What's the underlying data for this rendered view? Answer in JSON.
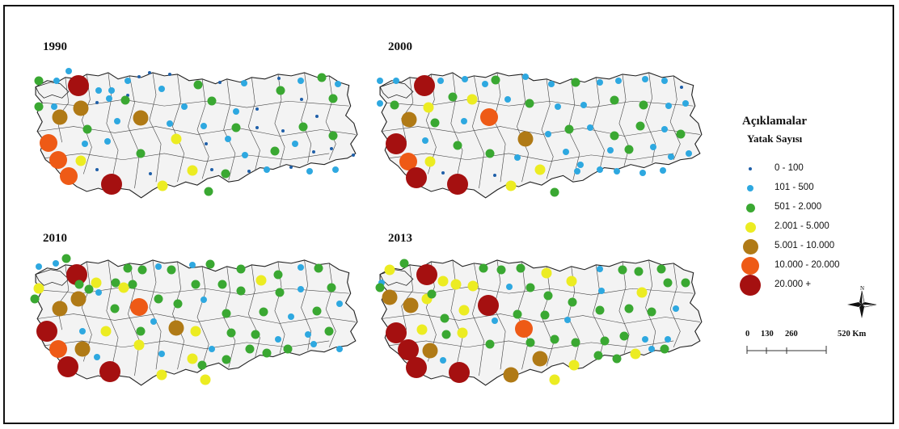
{
  "panels": [
    {
      "year": "1990",
      "dots": [
        [
          48,
          100,
          2
        ],
        [
          70,
          100,
          1
        ],
        [
          85,
          88,
          1
        ],
        [
          97,
          106,
          6
        ],
        [
          122,
          112,
          1
        ],
        [
          138,
          112,
          1
        ],
        [
          158,
          100,
          1
        ],
        [
          172,
          95,
          0
        ],
        [
          185,
          90,
          0
        ],
        [
          210,
          92,
          0
        ],
        [
          245,
          105,
          2
        ],
        [
          272,
          102,
          0
        ],
        [
          302,
          103,
          1
        ],
        [
          345,
          97,
          0
        ],
        [
          372,
          100,
          1
        ],
        [
          398,
          96,
          2
        ],
        [
          418,
          104,
          1
        ],
        [
          48,
          132,
          2
        ],
        [
          100,
          134,
          4
        ],
        [
          67,
          132,
          1
        ],
        [
          120,
          127,
          0
        ],
        [
          135,
          122,
          1
        ],
        [
          158,
          118,
          0
        ],
        [
          155,
          124,
          2
        ],
        [
          200,
          110,
          1
        ],
        [
          228,
          132,
          1
        ],
        [
          262,
          125,
          2
        ],
        [
          292,
          138,
          1
        ],
        [
          318,
          135,
          0
        ],
        [
          347,
          112,
          2
        ],
        [
          373,
          123,
          0
        ],
        [
          412,
          122,
          2
        ],
        [
          74,
          145,
          4
        ],
        [
          108,
          160,
          2
        ],
        [
          145,
          150,
          1
        ],
        [
          174,
          146,
          4
        ],
        [
          210,
          153,
          1
        ],
        [
          252,
          156,
          1
        ],
        [
          292,
          158,
          2
        ],
        [
          318,
          158,
          0
        ],
        [
          350,
          162,
          0
        ],
        [
          375,
          157,
          2
        ],
        [
          412,
          168,
          2
        ],
        [
          392,
          144,
          0
        ],
        [
          60,
          177,
          5
        ],
        [
          105,
          178,
          1
        ],
        [
          133,
          175,
          1
        ],
        [
          174,
          190,
          2
        ],
        [
          218,
          172,
          3
        ],
        [
          255,
          178,
          0
        ],
        [
          282,
          172,
          1
        ],
        [
          303,
          192,
          1
        ],
        [
          340,
          187,
          2
        ],
        [
          365,
          178,
          1
        ],
        [
          388,
          188,
          0
        ],
        [
          410,
          184,
          0
        ],
        [
          437,
          192,
          0
        ],
        [
          72,
          198,
          5
        ],
        [
          100,
          199,
          3
        ],
        [
          85,
          218,
          5
        ],
        [
          120,
          210,
          0
        ],
        [
          138,
          228,
          6
        ],
        [
          186,
          215,
          0
        ],
        [
          201,
          230,
          3
        ],
        [
          238,
          211,
          3
        ],
        [
          262,
          210,
          0
        ],
        [
          279,
          215,
          2
        ],
        [
          258,
          237,
          2
        ],
        [
          308,
          212,
          0
        ],
        [
          330,
          210,
          1
        ],
        [
          360,
          207,
          0
        ],
        [
          383,
          212,
          1
        ],
        [
          415,
          210,
          1
        ]
      ]
    },
    {
      "year": "2000",
      "dots": [
        [
          470,
          100,
          1
        ],
        [
          490,
          100,
          1
        ],
        [
          525,
          106,
          6
        ],
        [
          545,
          100,
          1
        ],
        [
          575,
          98,
          1
        ],
        [
          600,
          104,
          1
        ],
        [
          613,
          99,
          2
        ],
        [
          650,
          95,
          1
        ],
        [
          682,
          104,
          1
        ],
        [
          712,
          102,
          2
        ],
        [
          742,
          102,
          1
        ],
        [
          765,
          100,
          1
        ],
        [
          798,
          98,
          1
        ],
        [
          822,
          100,
          1
        ],
        [
          843,
          108,
          0
        ],
        [
          470,
          128,
          1
        ],
        [
          488,
          130,
          2
        ],
        [
          530,
          133,
          3
        ],
        [
          560,
          120,
          2
        ],
        [
          584,
          123,
          3
        ],
        [
          605,
          145,
          5
        ],
        [
          628,
          123,
          1
        ],
        [
          655,
          128,
          2
        ],
        [
          690,
          132,
          1
        ],
        [
          722,
          130,
          1
        ],
        [
          760,
          124,
          2
        ],
        [
          796,
          130,
          2
        ],
        [
          827,
          131,
          1
        ],
        [
          848,
          128,
          1
        ],
        [
          506,
          148,
          4
        ],
        [
          538,
          152,
          2
        ],
        [
          574,
          150,
          1
        ],
        [
          650,
          172,
          4
        ],
        [
          678,
          166,
          1
        ],
        [
          704,
          160,
          2
        ],
        [
          730,
          158,
          1
        ],
        [
          760,
          168,
          2
        ],
        [
          792,
          156,
          2
        ],
        [
          822,
          160,
          1
        ],
        [
          842,
          166,
          2
        ],
        [
          490,
          178,
          6
        ],
        [
          526,
          174,
          1
        ],
        [
          566,
          180,
          2
        ],
        [
          606,
          190,
          2
        ],
        [
          640,
          195,
          1
        ],
        [
          668,
          210,
          3
        ],
        [
          700,
          188,
          1
        ],
        [
          718,
          204,
          1
        ],
        [
          755,
          186,
          1
        ],
        [
          778,
          185,
          2
        ],
        [
          808,
          182,
          1
        ],
        [
          830,
          194,
          1
        ],
        [
          852,
          190,
          1
        ],
        [
          505,
          200,
          5
        ],
        [
          532,
          200,
          3
        ],
        [
          515,
          220,
          6
        ],
        [
          548,
          214,
          0
        ],
        [
          566,
          228,
          6
        ],
        [
          612,
          217,
          0
        ],
        [
          632,
          230,
          3
        ],
        [
          686,
          238,
          2
        ],
        [
          714,
          212,
          1
        ],
        [
          742,
          210,
          1
        ],
        [
          763,
          212,
          1
        ],
        [
          795,
          214,
          1
        ],
        [
          820,
          211,
          1
        ]
      ]
    },
    {
      "year": "2010",
      "dots": [
        [
          48,
          330,
          1
        ],
        [
          69,
          326,
          1
        ],
        [
          82,
          320,
          2
        ],
        [
          95,
          340,
          6
        ],
        [
          119,
          350,
          3
        ],
        [
          143,
          350,
          2
        ],
        [
          158,
          332,
          2
        ],
        [
          176,
          334,
          2
        ],
        [
          196,
          330,
          1
        ],
        [
          212,
          334,
          2
        ],
        [
          238,
          328,
          1
        ],
        [
          260,
          327,
          2
        ],
        [
          298,
          333,
          2
        ],
        [
          323,
          347,
          3
        ],
        [
          344,
          340,
          2
        ],
        [
          372,
          331,
          1
        ],
        [
          394,
          332,
          2
        ],
        [
          43,
          370,
          2
        ],
        [
          74,
          382,
          4
        ],
        [
          97,
          370,
          4
        ],
        [
          98,
          352,
          2
        ],
        [
          110,
          358,
          2
        ],
        [
          122,
          362,
          1
        ],
        [
          153,
          356,
          3
        ],
        [
          164,
          352,
          2
        ],
        [
          196,
          370,
          2
        ],
        [
          242,
          352,
          2
        ],
        [
          275,
          352,
          2
        ],
        [
          298,
          360,
          2
        ],
        [
          346,
          362,
          2
        ],
        [
          372,
          358,
          1
        ],
        [
          410,
          356,
          2
        ],
        [
          48,
          357,
          3
        ],
        [
          142,
          382,
          2
        ],
        [
          172,
          380,
          5
        ],
        [
          220,
          376,
          2
        ],
        [
          252,
          371,
          1
        ],
        [
          280,
          388,
          2
        ],
        [
          326,
          386,
          2
        ],
        [
          360,
          392,
          1
        ],
        [
          392,
          385,
          2
        ],
        [
          420,
          376,
          1
        ],
        [
          58,
          410,
          6
        ],
        [
          102,
          410,
          1
        ],
        [
          131,
          410,
          3
        ],
        [
          174,
          410,
          2
        ],
        [
          190,
          398,
          1
        ],
        [
          218,
          406,
          4
        ],
        [
          242,
          410,
          3
        ],
        [
          286,
          412,
          2
        ],
        [
          316,
          414,
          2
        ],
        [
          344,
          420,
          1
        ],
        [
          381,
          414,
          1
        ],
        [
          407,
          410,
          2
        ],
        [
          72,
          432,
          5
        ],
        [
          102,
          432,
          4
        ],
        [
          84,
          454,
          6
        ],
        [
          120,
          442,
          1
        ],
        [
          136,
          460,
          6
        ],
        [
          172,
          427,
          3
        ],
        [
          200,
          438,
          1
        ],
        [
          238,
          444,
          3
        ],
        [
          262,
          432,
          1
        ],
        [
          280,
          445,
          2
        ],
        [
          250,
          452,
          2
        ],
        [
          309,
          432,
          2
        ],
        [
          330,
          437,
          2
        ],
        [
          356,
          432,
          2
        ],
        [
          388,
          426,
          1
        ],
        [
          420,
          432,
          1
        ],
        [
          200,
          464,
          3
        ],
        [
          254,
          470,
          3
        ]
      ]
    },
    {
      "year": "2013",
      "dots": [
        [
          482,
          334,
          3
        ],
        [
          500,
          326,
          2
        ],
        [
          528,
          340,
          6
        ],
        [
          548,
          348,
          3
        ],
        [
          564,
          352,
          3
        ],
        [
          585,
          354,
          3
        ],
        [
          598,
          332,
          2
        ],
        [
          620,
          334,
          2
        ],
        [
          644,
          332,
          2
        ],
        [
          676,
          338,
          3
        ],
        [
          707,
          348,
          3
        ],
        [
          742,
          333,
          1
        ],
        [
          770,
          334,
          2
        ],
        [
          790,
          336,
          2
        ],
        [
          818,
          333,
          2
        ],
        [
          472,
          350,
          1
        ],
        [
          482,
          368,
          4
        ],
        [
          508,
          378,
          4
        ],
        [
          528,
          370,
          3
        ],
        [
          574,
          384,
          3
        ],
        [
          604,
          378,
          6
        ],
        [
          630,
          355,
          1
        ],
        [
          656,
          356,
          2
        ],
        [
          678,
          366,
          2
        ],
        [
          708,
          374,
          2
        ],
        [
          744,
          360,
          1
        ],
        [
          794,
          362,
          3
        ],
        [
          826,
          350,
          2
        ],
        [
          848,
          350,
          2
        ],
        [
          470,
          356,
          2
        ],
        [
          534,
          364,
          2
        ],
        [
          550,
          394,
          2
        ],
        [
          572,
          412,
          3
        ],
        [
          612,
          397,
          1
        ],
        [
          640,
          389,
          2
        ],
        [
          674,
          390,
          2
        ],
        [
          702,
          396,
          1
        ],
        [
          742,
          384,
          2
        ],
        [
          778,
          382,
          2
        ],
        [
          806,
          386,
          2
        ],
        [
          836,
          382,
          1
        ],
        [
          490,
          412,
          6
        ],
        [
          522,
          408,
          3
        ],
        [
          552,
          414,
          2
        ],
        [
          606,
          426,
          2
        ],
        [
          648,
          407,
          5
        ],
        [
          656,
          424,
          2
        ],
        [
          686,
          420,
          2
        ],
        [
          712,
          424,
          2
        ],
        [
          748,
          422,
          2
        ],
        [
          772,
          416,
          2
        ],
        [
          798,
          420,
          1
        ],
        [
          826,
          420,
          1
        ],
        [
          505,
          433,
          6
        ],
        [
          532,
          434,
          4
        ],
        [
          515,
          455,
          6
        ],
        [
          548,
          446,
          1
        ],
        [
          568,
          461,
          6
        ],
        [
          632,
          464,
          4
        ],
        [
          668,
          444,
          4
        ],
        [
          686,
          470,
          3
        ],
        [
          710,
          452,
          3
        ],
        [
          740,
          440,
          2
        ],
        [
          763,
          444,
          2
        ],
        [
          786,
          438,
          3
        ],
        [
          806,
          432,
          1
        ],
        [
          822,
          432,
          2
        ]
      ]
    }
  ],
  "legend": {
    "title": "Açıklamalar",
    "subtitle": "Yatak Sayısı",
    "items": [
      {
        "label": "0 - 100",
        "color": "#1f5fa8"
      },
      {
        "label": "101 - 500",
        "color": "#2ea8e0"
      },
      {
        "label": "501 - 2.000",
        "color": "#3aa832"
      },
      {
        "label": "2.001 - 5.000",
        "color": "#ecec22"
      },
      {
        "label": "5.001 - 10.000",
        "color": "#b07a16"
      },
      {
        "label": "10.000 - 20.000",
        "color": "#ee5a16"
      },
      {
        "label": "20.000 +",
        "color": "#a51010"
      }
    ]
  },
  "north_label": "N",
  "scale": {
    "ticks": [
      "0",
      "130",
      "260",
      "520 Km"
    ]
  }
}
